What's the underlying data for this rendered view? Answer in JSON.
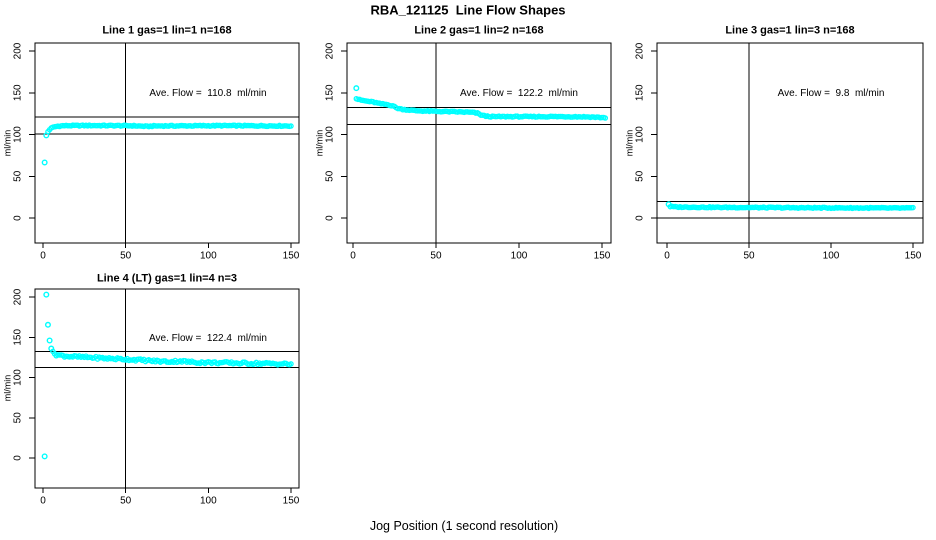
{
  "page": {
    "main_title": "RBA_121125  Line Flow Shapes",
    "x_axis_label": "Jog Position (1 second resolution)",
    "background_color": "#ffffff",
    "marker_color": "#00ffff",
    "line_color": "#000000"
  },
  "chart_data": [
    {
      "type": "scatter",
      "title": "Line 1 gas=1 lin=1 n=168",
      "line": "Line 1",
      "gas": 1,
      "lin": 1,
      "n": 168,
      "ylabel": "ml/min",
      "annotation": "Ave. Flow =  110.8  ml/min",
      "ave_flow_ml_min": 110.8,
      "xticks": [
        0,
        50,
        100,
        150
      ],
      "yticks": [
        0,
        50,
        100,
        150,
        200
      ],
      "xlim": [
        -4.84,
        154.84
      ],
      "ylim": [
        -29.9,
        209.6
      ],
      "vline_x": 50,
      "hlines": [
        120.8,
        100.8
      ],
      "isolated_points": [
        [
          1,
          66.5
        ],
        [
          2,
          99
        ]
      ],
      "band_breakpoints": [
        [
          3,
          103.5
        ],
        [
          4,
          106
        ],
        [
          5,
          107.5
        ],
        [
          6,
          108.5
        ],
        [
          7,
          109.3
        ],
        [
          9,
          110
        ],
        [
          13,
          110.6
        ],
        [
          30,
          110.8
        ],
        [
          55,
          110.5
        ],
        [
          63,
          109.7
        ],
        [
          68,
          110.3
        ],
        [
          110,
          110.6
        ],
        [
          150,
          110.3
        ]
      ],
      "band_x_step": 1,
      "band_jitter": 0.6
    },
    {
      "type": "scatter",
      "title": "Line 2 gas=1 lin=2 n=168",
      "line": "Line 2",
      "gas": 1,
      "lin": 2,
      "n": 168,
      "ylabel": "ml/min",
      "annotation": "Ave. Flow =  122.2  ml/min",
      "ave_flow_ml_min": 122.2,
      "xticks": [
        0,
        50,
        100,
        150
      ],
      "yticks": [
        0,
        50,
        100,
        150,
        200
      ],
      "xlim": [
        -3.61,
        155.42
      ],
      "ylim": [
        -29.9,
        209.6
      ],
      "vline_x": 50,
      "hlines": [
        132.2,
        112.2
      ],
      "isolated_points": [
        [
          2,
          155.5
        ]
      ],
      "band_breakpoints": [
        [
          2,
          143
        ],
        [
          4,
          141.5
        ],
        [
          8,
          140
        ],
        [
          12,
          139
        ],
        [
          16,
          137
        ],
        [
          20,
          136
        ],
        [
          24,
          134.5
        ],
        [
          26,
          132
        ],
        [
          29,
          130.5
        ],
        [
          33,
          129.5
        ],
        [
          38,
          128.5
        ],
        [
          45,
          128
        ],
        [
          55,
          127.5
        ],
        [
          65,
          127
        ],
        [
          72,
          126.5
        ],
        [
          75,
          125.5
        ],
        [
          77,
          123.5
        ],
        [
          80,
          122
        ],
        [
          84,
          121.4
        ],
        [
          95,
          121.5
        ],
        [
          110,
          121.4
        ],
        [
          125,
          121.5
        ],
        [
          140,
          121.2
        ],
        [
          147,
          120.7
        ],
        [
          152,
          120.1
        ]
      ],
      "band_x_step": 1,
      "band_jitter": 0.6
    },
    {
      "type": "scatter",
      "title": "Line 3 gas=1 lin=3 n=168",
      "line": "Line 3",
      "gas": 1,
      "lin": 3,
      "n": 168,
      "ylabel": "ml/min",
      "annotation": "Ave. Flow =  9.8  ml/min",
      "ave_flow_ml_min": 9.8,
      "xticks": [
        0,
        50,
        100,
        150
      ],
      "yticks": [
        0,
        50,
        100,
        150,
        200
      ],
      "xlim": [
        -6.1,
        156.1
      ],
      "ylim": [
        -29.9,
        209.6
      ],
      "vline_x": 50,
      "hlines": [
        19.8,
        -0.2
      ],
      "isolated_points": [
        [
          1,
          16.5
        ]
      ],
      "band_breakpoints": [
        [
          2,
          13.8
        ],
        [
          6,
          13.2
        ],
        [
          30,
          12.8
        ],
        [
          80,
          12.3
        ],
        [
          150,
          11.9
        ]
      ],
      "band_x_step": 1,
      "band_jitter": 0.6
    },
    {
      "type": "scatter",
      "title": "Line 4 (LT) gas=1 lin=4 n=3",
      "line": "Line 4 (LT)",
      "gas": 1,
      "lin": 4,
      "n": 3,
      "ylabel": "ml/min",
      "annotation": "Ave. Flow =  122.4  ml/min",
      "ave_flow_ml_min": 122.4,
      "xticks": [
        0,
        50,
        100,
        150
      ],
      "yticks": [
        0,
        50,
        100,
        150,
        200
      ],
      "xlim": [
        -4.84,
        154.84
      ],
      "ylim": [
        -37.3,
        210.0
      ],
      "vline_x": 50,
      "hlines": [
        132.4,
        112.4
      ],
      "isolated_points": [
        [
          1,
          2
        ],
        [
          2,
          203
        ],
        [
          3,
          165.5
        ],
        [
          4,
          146
        ],
        [
          5,
          136
        ]
      ],
      "band_breakpoints": [
        [
          6,
          131
        ],
        [
          8,
          128.5
        ],
        [
          11,
          127.3
        ],
        [
          16,
          126.3
        ],
        [
          22,
          125.5
        ],
        [
          28,
          125
        ],
        [
          35,
          124.2
        ],
        [
          42,
          123.5
        ],
        [
          50,
          122.8
        ],
        [
          58,
          121.8
        ],
        [
          65,
          120.8
        ],
        [
          72,
          120
        ],
        [
          78,
          119.8
        ],
        [
          83,
          120.6
        ],
        [
          88,
          119.4
        ],
        [
          95,
          118.8
        ],
        [
          103,
          118.5
        ],
        [
          112,
          118.2
        ],
        [
          122,
          117.8
        ],
        [
          132,
          117.5
        ],
        [
          142,
          117.1
        ],
        [
          150,
          116.6
        ]
      ],
      "band_x_step": 1,
      "band_jitter": 1.5
    }
  ]
}
